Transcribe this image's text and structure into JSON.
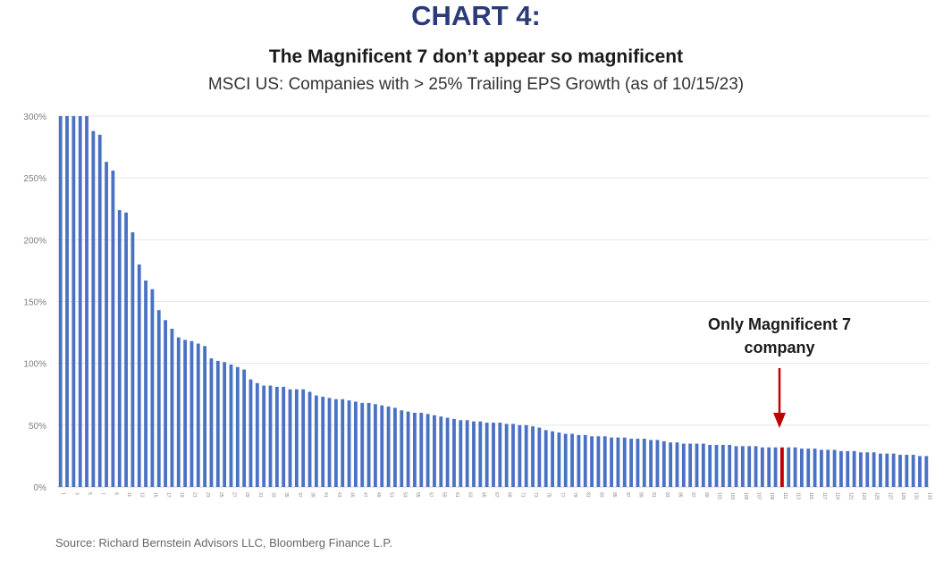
{
  "header": {
    "chart_label": "CHART 4:"
  },
  "source": "Source: Richard Bernstein Advisors LLC, Bloomberg Finance L.P.",
  "colors": {
    "bar": "#4a72c4",
    "highlight": "#c00000",
    "grid": "#e6e6e6",
    "axis_text": "#7f7f7f",
    "title_accent": "#2b3a78"
  },
  "chart_data": {
    "type": "bar",
    "title": "The Magnificent 7 don’t appear so magnificent",
    "subtitle": "MSCI US: Companies with > 25% Trailing EPS Growth (as of 10/15/23)",
    "xlabel": "",
    "ylabel": "",
    "ylim": [
      0,
      300
    ],
    "yticks": [
      0,
      50,
      100,
      150,
      200,
      250,
      300
    ],
    "ytick_labels": [
      "0%",
      "50%",
      "100%",
      "150%",
      "200%",
      "250%",
      "300%"
    ],
    "grid": true,
    "categories": [
      "1",
      "2",
      "3",
      "4",
      "5",
      "6",
      "7",
      "8",
      "9",
      "10",
      "11",
      "12",
      "13",
      "14",
      "15",
      "16",
      "17",
      "18",
      "19",
      "20",
      "21",
      "22",
      "23",
      "24",
      "25",
      "26",
      "27",
      "28",
      "29",
      "30",
      "31",
      "32",
      "33",
      "34",
      "35",
      "36",
      "37",
      "38",
      "39",
      "40",
      "41",
      "42",
      "43",
      "44",
      "45",
      "46",
      "47",
      "48",
      "49",
      "50",
      "51",
      "52",
      "53",
      "54",
      "55",
      "56",
      "57",
      "58",
      "59",
      "60",
      "61",
      "62",
      "63",
      "64",
      "65",
      "66",
      "67",
      "68",
      "69",
      "70",
      "71",
      "72",
      "73",
      "74",
      "75",
      "76",
      "77",
      "78",
      "79",
      "80",
      "81",
      "82",
      "83",
      "84",
      "85",
      "86",
      "87",
      "88",
      "89",
      "90",
      "91",
      "92",
      "93",
      "94",
      "95",
      "96",
      "97",
      "98",
      "99",
      "100",
      "101",
      "102",
      "103",
      "104",
      "105",
      "106",
      "107",
      "108",
      "109",
      "110",
      "111",
      "112",
      "113",
      "114",
      "115",
      "116",
      "117",
      "118",
      "119",
      "120",
      "121",
      "122",
      "123",
      "124",
      "125",
      "126",
      "127",
      "128",
      "129",
      "130",
      "131",
      "132",
      "133"
    ],
    "values": [
      300,
      300,
      300,
      300,
      300,
      288,
      285,
      263,
      256,
      224,
      222,
      206,
      180,
      167,
      160,
      143,
      135,
      128,
      121,
      119,
      118,
      116,
      114,
      104,
      102,
      101,
      99,
      97,
      95,
      87,
      84,
      82,
      82,
      81,
      81,
      79,
      79,
      79,
      77,
      74,
      73,
      72,
      71,
      71,
      70,
      69,
      68,
      68,
      67,
      66,
      65,
      64,
      62,
      61,
      60,
      60,
      59,
      58,
      57,
      56,
      55,
      54,
      54,
      53,
      53,
      52,
      52,
      52,
      51,
      51,
      50,
      50,
      49,
      48,
      46,
      45,
      44,
      43,
      43,
      42,
      42,
      41,
      41,
      41,
      40,
      40,
      40,
      39,
      39,
      39,
      38,
      38,
      37,
      36,
      36,
      35,
      35,
      35,
      35,
      34,
      34,
      34,
      34,
      33,
      33,
      33,
      33,
      32,
      32,
      32,
      32,
      32,
      32,
      31,
      31,
      31,
      30,
      30,
      30,
      29,
      29,
      29,
      28,
      28,
      28,
      27,
      27,
      27,
      26,
      26,
      26,
      25,
      25
    ],
    "highlight_index": 110,
    "annotation": {
      "text_line1": "Only Magnificent 7",
      "text_line2": "company"
    }
  }
}
